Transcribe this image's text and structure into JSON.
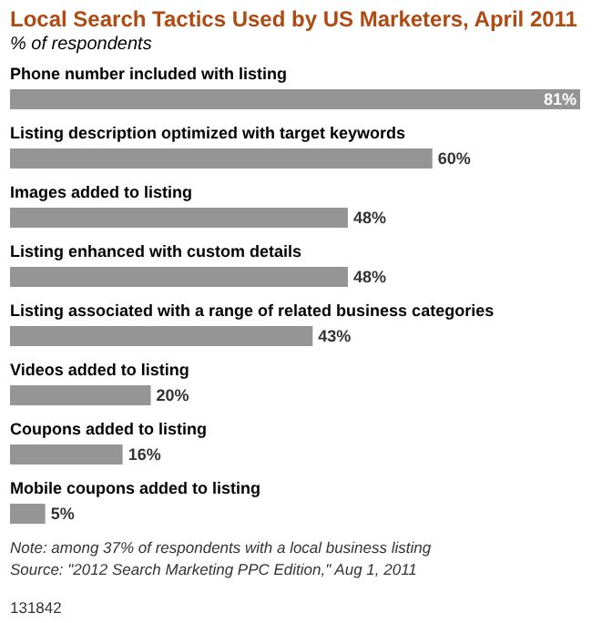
{
  "chart_data": {
    "type": "bar",
    "orientation": "horizontal",
    "title": "Local Search Tactics Used by US Marketers, April 2011",
    "subtitle": "% of respondents",
    "categories": [
      "Phone number included with listing",
      "Listing description optimized with target keywords",
      "Images added to listing",
      "Listing enhanced with custom details",
      "Listing associated with a range of related business categories",
      "Videos added to listing",
      "Coupons added to listing",
      "Mobile coupons added to listing"
    ],
    "values": [
      81,
      60,
      48,
      48,
      43,
      20,
      16,
      5
    ],
    "color": "#959595",
    "data_labels": true,
    "value_labels": [
      "81%",
      "60%",
      "48%",
      "48%",
      "43%",
      "20%",
      "16%",
      "5%"
    ],
    "annotations": [
      "Note: among 37% of respondents with a local business listing",
      "Source: \"2012 Search Marketing PPC Edition,\" Aug 1, 2011",
      "131842"
    ]
  }
}
